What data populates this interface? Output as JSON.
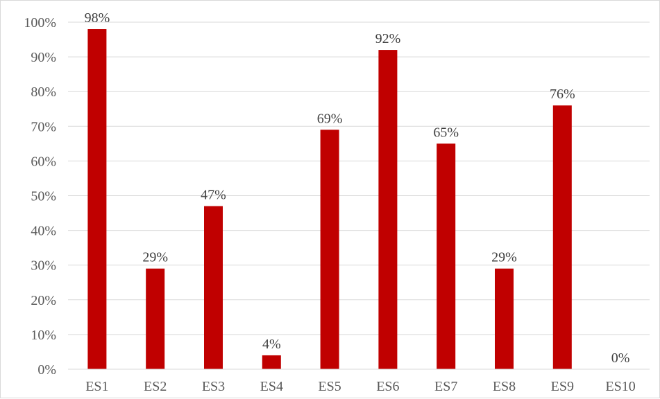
{
  "chart_data": {
    "type": "bar",
    "categories": [
      "ES1",
      "ES2",
      "ES3",
      "ES4",
      "ES5",
      "ES6",
      "ES7",
      "ES8",
      "ES9",
      "ES10"
    ],
    "series": [
      {
        "values": [
          98,
          29,
          47,
          4,
          69,
          92,
          65,
          29,
          76,
          0
        ]
      }
    ],
    "data_labels": [
      "98%",
      "29%",
      "47%",
      "4%",
      "69%",
      "92%",
      "65%",
      "29%",
      "76%",
      "0%"
    ],
    "y_ticks": [
      "0%",
      "10%",
      "20%",
      "30%",
      "40%",
      "50%",
      "60%",
      "70%",
      "80%",
      "90%",
      "100%"
    ],
    "ylim": [
      0,
      100
    ],
    "y_unit": "%",
    "grid": true,
    "legend": "none",
    "title": "",
    "xlabel": "",
    "ylabel": "",
    "colors": {
      "bar": "#c00000",
      "gridline": "#d9d9d9",
      "axis_line": "#d9d9d9",
      "text": "#595959"
    }
  }
}
